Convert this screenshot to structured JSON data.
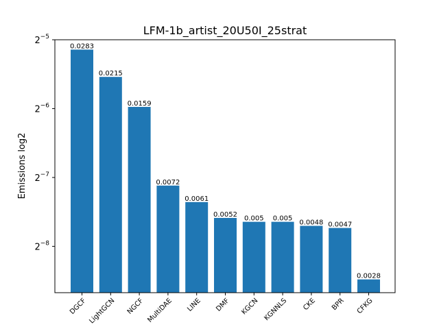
{
  "chart_data": {
    "type": "bar",
    "title": "LFM-1b_artist_20U50I_25strat",
    "xlabel": "",
    "ylabel": "Emissions log2",
    "yscale": "log2",
    "categories": [
      "DGCF",
      "LightGCN",
      "NGCF",
      "MultiDAE",
      "LINE",
      "DMF",
      "KGCN",
      "KGNNLS",
      "CKE",
      "BPR",
      "CFKG"
    ],
    "values": [
      0.0283,
      0.0215,
      0.0159,
      0.0072,
      0.0061,
      0.0052,
      0.005,
      0.005,
      0.0048,
      0.0047,
      0.0028
    ],
    "value_labels": [
      "0.0283",
      "0.0215",
      "0.0159",
      "0.0072",
      "0.0061",
      "0.0052",
      "0.005",
      "0.005",
      "0.0048",
      "0.0047",
      "0.0028"
    ],
    "y_ticks": [
      {
        "exp": "-5",
        "value": 0.03125
      },
      {
        "exp": "-6",
        "value": 0.015625
      },
      {
        "exp": "-7",
        "value": 0.0078125
      },
      {
        "exp": "-8",
        "value": 0.00390625
      }
    ],
    "ylim": [
      0.00245,
      0.03125
    ],
    "bar_color": "#1f77b4",
    "grid": false,
    "legend": "none"
  }
}
